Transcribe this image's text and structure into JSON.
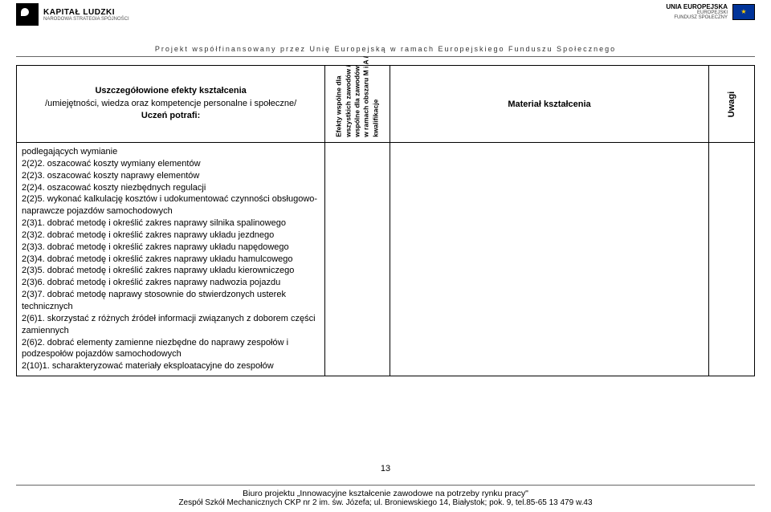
{
  "header": {
    "left_logo_l1": "KAPITAŁ LUDZKI",
    "left_logo_l2": "NARODOWA STRATEGIA SPÓJNOŚCI",
    "right_logo_l1": "UNIA EUROPEJSKA",
    "right_logo_l2": "EUROPEJSKI",
    "right_logo_l3": "FUNDUSZ SPOŁECZNY",
    "subhead": "Projekt współfinansowany przez Unię Europejską w ramach Europejskiego Funduszu Społecznego"
  },
  "table": {
    "head_a_l1": "Uszczegółowione efekty kształcenia",
    "head_a_l2": "/umiejętności, wiedza oraz kompetencje personalne i społeczne/",
    "head_a_l3": "Uczeń potrafi:",
    "head_b_l1": "Efekty wspólne dla",
    "head_b_l2": "wszystkich zawodów /",
    "head_b_l3": "wspólne dla zawodów",
    "head_b_l4": "w ramach obszaru M i A /",
    "head_b_l5": "kwalifikacje",
    "head_c": "Materiał kształcenia",
    "head_d": "Uwagi",
    "body_items": [
      "podlegających wymianie",
      "2(2)2. oszacować koszty wymiany elementów",
      "2(2)3. oszacować koszty naprawy elementów",
      "2(2)4. oszacować koszty niezbędnych regulacji",
      "2(2)5. wykonać kalkulację kosztów i udokumentować czynności obsługowo-naprawcze pojazdów samochodowych",
      "2(3)1. dobrać metodę i określić zakres naprawy silnika spalinowego",
      "2(3)2. dobrać metodę i określić zakres naprawy układu jezdnego",
      "2(3)3. dobrać metodę i określić zakres naprawy układu napędowego",
      "2(3)4. dobrać metodę i określić zakres naprawy układu hamulcowego",
      "2(3)5. dobrać metodę i określić zakres naprawy układu kierowniczego",
      "2(3)6. dobrać metodę i określić zakres naprawy nadwozia pojazdu",
      "2(3)7. dobrać metodę naprawy stosownie do stwierdzonych usterek technicznych",
      "2(6)1. skorzystać z różnych źródeł informacji związanych z doborem części zamiennych",
      "2(6)2. dobrać elementy zamienne niezbędne do naprawy zespołów i podzespołów pojazdów samochodowych",
      "2(10)1. scharakteryzować materiały eksploatacyjne do zespołów"
    ]
  },
  "page_number": "13",
  "footer": {
    "line1": "Biuro projektu „Innowacyjne kształcenie zawodowe na potrzeby rynku pracy\"",
    "line2": "Zespół Szkół Mechanicznych CKP nr 2 im. św. Józefa; ul. Broniewskiego 14, Białystok; pok. 9, tel.85-65 13 479 w.43"
  },
  "colors": {
    "text": "#000000",
    "rule": "#666666",
    "eu_blue": "#003399",
    "eu_gold": "#ffcc00"
  }
}
